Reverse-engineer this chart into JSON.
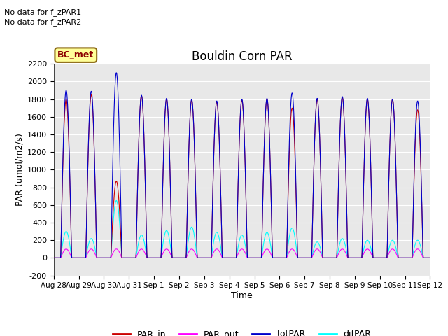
{
  "title": "Bouldin Corn PAR",
  "ylabel": "PAR (umol/m2/s)",
  "xlabel": "Time",
  "no_data_text": [
    "No data for f_zPAR1",
    "No data for f_zPAR2"
  ],
  "legend_label": "BC_met",
  "ylim": [
    -200,
    2200
  ],
  "bg_color": "#e8e8e8",
  "line_colors": {
    "PAR_in": "#cc0000",
    "PAR_out": "#ff00ff",
    "totPAR": "#0000cc",
    "difPAR": "#00ffff"
  },
  "x_tick_labels": [
    "Aug 28",
    "Aug 29",
    "Aug 30",
    "Aug 31",
    "Sep 1",
    "Sep 2",
    "Sep 3",
    "Sep 4",
    "Sep 5",
    "Sep 6",
    "Sep 7",
    "Sep 8",
    "Sep 9",
    "Sep 10",
    "Sep 11",
    "Sep 12"
  ],
  "n_days": 15,
  "peaks": {
    "day0": {
      "totPAR": 1900,
      "PAR_in": 1800,
      "difPAR": 300
    },
    "day1": {
      "totPAR": 1890,
      "PAR_in": 1850,
      "difPAR": 220
    },
    "day2": {
      "totPAR": 2100,
      "PAR_in": 870,
      "difPAR": 650
    },
    "day3": {
      "totPAR": 1845,
      "PAR_in": 1840,
      "difPAR": 260
    },
    "day4": {
      "totPAR": 1810,
      "PAR_in": 1800,
      "difPAR": 310
    },
    "day5": {
      "totPAR": 1800,
      "PAR_in": 1790,
      "difPAR": 350
    },
    "day6": {
      "totPAR": 1780,
      "PAR_in": 1770,
      "difPAR": 290
    },
    "day7": {
      "totPAR": 1800,
      "PAR_in": 1790,
      "difPAR": 260
    },
    "day8": {
      "totPAR": 1810,
      "PAR_in": 1800,
      "difPAR": 290
    },
    "day9": {
      "totPAR": 1870,
      "PAR_in": 1700,
      "difPAR": 340
    },
    "day10": {
      "totPAR": 1810,
      "PAR_in": 1800,
      "difPAR": 180
    },
    "day11": {
      "totPAR": 1830,
      "PAR_in": 1820,
      "difPAR": 220
    },
    "day12": {
      "totPAR": 1810,
      "PAR_in": 1800,
      "difPAR": 200
    },
    "day13": {
      "totPAR": 1800,
      "PAR_in": 1800,
      "difPAR": 200
    },
    "day14": {
      "totPAR": 1780,
      "PAR_in": 1680,
      "difPAR": 200
    }
  },
  "PAR_out_peak": 100
}
